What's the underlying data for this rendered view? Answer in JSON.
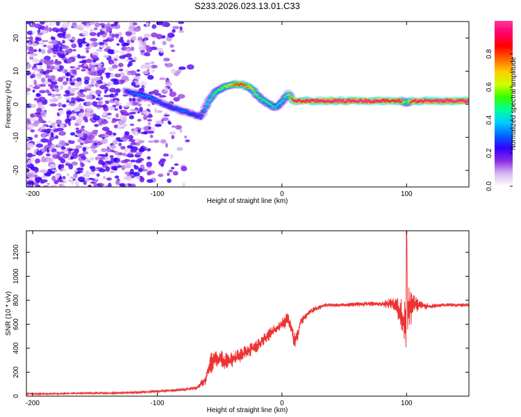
{
  "title": "S233.2026.023.13.01.C33",
  "chart_data": [
    {
      "type": "heatmap",
      "title": "S233.2026.023.13.01.C33",
      "xlabel": "Height of straight line (km)",
      "ylabel": "Frequency (Hz)",
      "xlim": [
        -205,
        150
      ],
      "ylim": [
        -25,
        25
      ],
      "xticks": [
        -200,
        -100,
        0,
        100
      ],
      "yticks": [
        -20,
        -10,
        0,
        10,
        20
      ],
      "colorbar": {
        "label": "Normalized spectral amplitude",
        "range": [
          0,
          1
        ],
        "ticks": [
          "0.0",
          "0.2",
          "0.4",
          "0.6",
          "0.8"
        ],
        "tick_values": [
          0.0,
          0.2,
          0.4,
          0.6,
          0.8
        ],
        "colors": [
          "#ffffff",
          "#d8b8f0",
          "#8a2be2",
          "#3300ff",
          "#0066ff",
          "#00ccff",
          "#00ff99",
          "#33ff00",
          "#ccff00",
          "#ffcc00",
          "#ff6600",
          "#ff0000",
          "#ff0066",
          "#ff3399"
        ]
      },
      "ridge": {
        "x": [
          -125,
          -115,
          -105,
          -95,
          -88,
          -80,
          -72,
          -65,
          -60,
          -55,
          -48,
          -40,
          -32,
          -25,
          -18,
          -10,
          -5,
          0,
          5,
          10,
          20,
          40,
          60,
          80,
          95,
          100,
          105,
          120,
          150
        ],
        "freq": [
          4,
          3,
          2,
          0,
          -1,
          -2,
          -3,
          -4,
          0,
          3,
          5,
          6,
          6,
          5,
          2,
          0,
          -1,
          1,
          3,
          1,
          1,
          1,
          1,
          1,
          1,
          0.5,
          1,
          1,
          1
        ],
        "amplitude": [
          0.25,
          0.3,
          0.3,
          0.25,
          0.25,
          0.3,
          0.25,
          0.25,
          0.4,
          0.45,
          0.5,
          0.65,
          0.8,
          0.6,
          0.45,
          0.45,
          0.4,
          0.4,
          0.5,
          0.9,
          0.9,
          0.95,
          0.95,
          0.9,
          0.85,
          0.4,
          0.9,
          0.95,
          0.95
        ]
      }
    },
    {
      "type": "line",
      "xlabel": "Height of straight line (km)",
      "ylabel": "SNR (10 * v/v)",
      "xlim": [
        -205,
        150
      ],
      "ylim": [
        0,
        1380
      ],
      "xticks": [
        -200,
        -100,
        0,
        100
      ],
      "yticks": [
        0,
        200,
        400,
        600,
        800,
        1000,
        1200
      ],
      "series": [
        {
          "name": "SNR",
          "color": "#ee3333",
          "x": [
            -205,
            -180,
            -160,
            -140,
            -120,
            -100,
            -85,
            -75,
            -68,
            -62,
            -58,
            -55,
            -50,
            -45,
            -40,
            -35,
            -30,
            -25,
            -20,
            -15,
            -10,
            -5,
            0,
            3,
            5,
            8,
            10,
            12,
            15,
            20,
            25,
            30,
            35,
            40,
            50,
            60,
            70,
            80,
            90,
            95,
            98,
            100,
            102,
            105,
            110,
            115,
            120,
            130,
            140,
            150
          ],
          "y": [
            20,
            20,
            25,
            25,
            30,
            40,
            50,
            60,
            70,
            130,
            250,
            300,
            310,
            290,
            300,
            330,
            360,
            390,
            420,
            470,
            520,
            560,
            600,
            620,
            630,
            560,
            450,
            500,
            620,
            680,
            720,
            740,
            760,
            760,
            760,
            765,
            770,
            770,
            770,
            700,
            600,
            650,
            720,
            760,
            760,
            750,
            750,
            760,
            760,
            760
          ],
          "spread": [
            15,
            15,
            15,
            15,
            18,
            20,
            25,
            30,
            40,
            90,
            180,
            200,
            180,
            150,
            140,
            130,
            120,
            110,
            110,
            100,
            110,
            100,
            100,
            120,
            140,
            150,
            200,
            150,
            80,
            60,
            50,
            40,
            40,
            35,
            35,
            40,
            40,
            50,
            120,
            250,
            400,
            500,
            400,
            200,
            80,
            60,
            40,
            35,
            35,
            35
          ],
          "peak": {
            "x": 100,
            "y": 1380
          }
        }
      ]
    }
  ]
}
